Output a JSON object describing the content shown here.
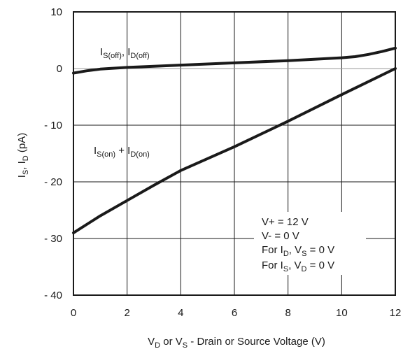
{
  "chart_data": {
    "type": "line",
    "title": "",
    "xlabel": {
      "pre": "V",
      "sub1": "D",
      "mid": " or V",
      "sub2": "S",
      "post": " - Drain or Source Voltage (V)"
    },
    "ylabel": {
      "a": "I",
      "a_sub": "S",
      "sep": ", I",
      "b_sub": "D",
      "unit": " (pA)"
    },
    "xlim": [
      0,
      12
    ],
    "ylim": [
      -40,
      10
    ],
    "grid": true,
    "x_ticks": [
      0,
      2,
      4,
      6,
      8,
      10,
      12
    ],
    "x_tick_labels": [
      "0",
      "2",
      "4",
      "6",
      "8",
      "10",
      "12"
    ],
    "y_ticks": [
      10,
      0,
      -10,
      -20,
      -30,
      -40
    ],
    "y_tick_labels": [
      "10",
      "0",
      "- 10",
      "- 20",
      "- 30",
      "- 40"
    ],
    "series": [
      {
        "name": {
          "a": "I",
          "a_sub": "S(off)",
          "sep": ", I",
          "b_sub": "D(off)"
        },
        "x": [
          0,
          0.5,
          1,
          2,
          4,
          6,
          8,
          10,
          10.5,
          11,
          11.5,
          12
        ],
        "y": [
          -0.8,
          -0.4,
          -0.1,
          0.2,
          0.6,
          1.0,
          1.4,
          1.9,
          2.1,
          2.5,
          3.0,
          3.6
        ]
      },
      {
        "name": {
          "a": "I",
          "a_sub": "S(on)",
          "sep": " + I",
          "b_sub": "D(on)"
        },
        "x": [
          0,
          1,
          2,
          3,
          4,
          6,
          8,
          10,
          12
        ],
        "y": [
          -29,
          -26,
          -23.3,
          -20.6,
          -18,
          -13.8,
          -9.3,
          -4.6,
          0
        ]
      }
    ],
    "annotation_lines": [
      {
        "pre": "V+ = 12 V"
      },
      {
        "pre": "V- = 0 V"
      },
      {
        "pre": "For I",
        "s1": "D",
        "mid": ", V",
        "s2": "S",
        "post": " = 0 V"
      },
      {
        "pre": "For I",
        "s1": "S",
        "mid": ", V",
        "s2": "D",
        "post": " = 0 V"
      }
    ],
    "colors": {
      "line": "#1a1a1a",
      "grid": "#1a1a1a",
      "frame": "#1a1a1a",
      "zero_line": "#9a9a9a"
    }
  }
}
